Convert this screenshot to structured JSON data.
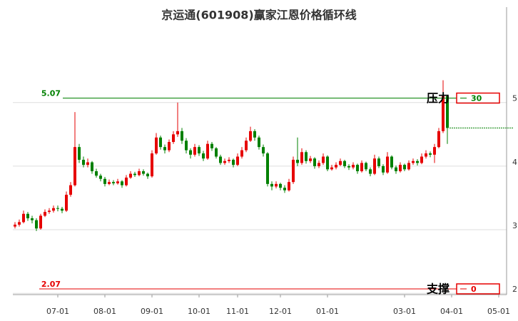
{
  "chart_data": {
    "type": "candlestick",
    "title": "京运通(601908)赢家江恩价格循环线",
    "categories": [
      null,
      null,
      null,
      null,
      null,
      null,
      null,
      null,
      null,
      null,
      "07-01",
      null,
      null,
      null,
      null,
      null,
      null,
      null,
      null,
      null,
      null,
      "08-01",
      null,
      null,
      null,
      null,
      null,
      null,
      null,
      null,
      null,
      null,
      "09-01",
      null,
      null,
      null,
      null,
      null,
      null,
      null,
      null,
      null,
      null,
      "10-01",
      null,
      null,
      null,
      null,
      null,
      null,
      null,
      null,
      "11-01",
      null,
      null,
      null,
      null,
      null,
      null,
      null,
      null,
      null,
      "12-01",
      null,
      null,
      null,
      null,
      null,
      null,
      null,
      null,
      null,
      null,
      "01-01",
      null,
      null,
      null,
      null,
      null,
      null,
      null,
      null,
      null,
      null,
      null,
      null,
      null,
      null,
      null,
      null,
      null,
      "03-01",
      null,
      null,
      null,
      null,
      null,
      null,
      null,
      null,
      null,
      null,
      "04-01",
      null,
      null,
      null,
      null,
      null,
      null,
      null,
      null,
      null,
      null,
      "05-01",
      null,
      null,
      null
    ],
    "values": [
      [
        3.05,
        3.12,
        3.02,
        3.08
      ],
      [
        3.08,
        3.16,
        3.05,
        3.12
      ],
      [
        3.12,
        3.3,
        3.1,
        3.25
      ],
      [
        3.25,
        3.28,
        3.14,
        3.18
      ],
      [
        3.18,
        3.22,
        3.1,
        3.15
      ],
      [
        3.15,
        3.18,
        2.98,
        3.02
      ],
      [
        3.02,
        3.25,
        3.0,
        3.22
      ],
      [
        3.22,
        3.32,
        3.2,
        3.28
      ],
      [
        3.28,
        3.34,
        3.25,
        3.3
      ],
      [
        3.3,
        3.38,
        3.27,
        3.34
      ],
      [
        3.34,
        3.38,
        3.29,
        3.33
      ],
      [
        3.33,
        3.36,
        3.26,
        3.3
      ],
      [
        3.3,
        3.6,
        3.28,
        3.55
      ],
      [
        3.55,
        3.75,
        3.52,
        3.7
      ],
      [
        3.7,
        4.85,
        3.68,
        4.3
      ],
      [
        4.3,
        4.35,
        4.05,
        4.1
      ],
      [
        4.1,
        4.15,
        3.98,
        4.02
      ],
      [
        4.02,
        4.12,
        3.98,
        4.06
      ],
      [
        4.06,
        4.08,
        3.88,
        3.92
      ],
      [
        3.92,
        3.96,
        3.82,
        3.85
      ],
      [
        3.85,
        3.88,
        3.76,
        3.8
      ],
      [
        3.8,
        3.83,
        3.68,
        3.72
      ],
      [
        3.72,
        3.79,
        3.7,
        3.75
      ],
      [
        3.75,
        3.78,
        3.7,
        3.73
      ],
      [
        3.73,
        3.8,
        3.71,
        3.76
      ],
      [
        3.76,
        3.78,
        3.66,
        3.7
      ],
      [
        3.7,
        3.86,
        3.68,
        3.82
      ],
      [
        3.82,
        3.92,
        3.8,
        3.88
      ],
      [
        3.88,
        3.91,
        3.83,
        3.86
      ],
      [
        3.86,
        3.96,
        3.84,
        3.92
      ],
      [
        3.92,
        3.95,
        3.85,
        3.88
      ],
      [
        3.88,
        3.9,
        3.8,
        3.84
      ],
      [
        3.84,
        4.25,
        3.82,
        4.2
      ],
      [
        4.2,
        4.52,
        4.18,
        4.45
      ],
      [
        4.45,
        4.48,
        4.26,
        4.3
      ],
      [
        4.3,
        4.34,
        4.2,
        4.25
      ],
      [
        4.25,
        4.42,
        4.22,
        4.38
      ],
      [
        4.38,
        4.55,
        4.35,
        4.5
      ],
      [
        4.5,
        5.0,
        4.46,
        4.55
      ],
      [
        4.55,
        4.6,
        4.35,
        4.4
      ],
      [
        4.4,
        4.44,
        4.2,
        4.25
      ],
      [
        4.25,
        4.28,
        4.12,
        4.18
      ],
      [
        4.18,
        4.35,
        4.15,
        4.3
      ],
      [
        4.3,
        4.33,
        4.16,
        4.2
      ],
      [
        4.2,
        4.24,
        4.08,
        4.12
      ],
      [
        4.12,
        4.4,
        4.1,
        4.35
      ],
      [
        4.35,
        4.38,
        4.24,
        4.28
      ],
      [
        4.28,
        4.3,
        4.12,
        4.15
      ],
      [
        4.15,
        4.18,
        4.02,
        4.05
      ],
      [
        4.05,
        4.12,
        4.02,
        4.08
      ],
      [
        4.08,
        4.14,
        4.05,
        4.1
      ],
      [
        4.1,
        4.12,
        3.98,
        4.02
      ],
      [
        4.02,
        4.2,
        4.0,
        4.15
      ],
      [
        4.15,
        4.3,
        4.12,
        4.25
      ],
      [
        4.25,
        4.45,
        4.22,
        4.4
      ],
      [
        4.4,
        4.62,
        4.38,
        4.55
      ],
      [
        4.55,
        4.58,
        4.4,
        4.45
      ],
      [
        4.45,
        4.48,
        4.26,
        4.3
      ],
      [
        4.3,
        4.34,
        4.15,
        4.2
      ],
      [
        4.2,
        4.22,
        3.68,
        3.72
      ],
      [
        3.72,
        3.76,
        3.62,
        3.68
      ],
      [
        3.68,
        3.76,
        3.65,
        3.72
      ],
      [
        3.72,
        3.74,
        3.62,
        3.66
      ],
      [
        3.66,
        3.7,
        3.58,
        3.62
      ],
      [
        3.62,
        3.8,
        3.6,
        3.75
      ],
      [
        3.75,
        4.15,
        3.72,
        4.1
      ],
      [
        4.1,
        4.45,
        4.0,
        4.05
      ],
      [
        4.05,
        4.28,
        4.02,
        4.22
      ],
      [
        4.22,
        4.25,
        4.04,
        4.08
      ],
      [
        4.08,
        4.16,
        4.05,
        4.12
      ],
      [
        4.12,
        4.14,
        3.96,
        4.0
      ],
      [
        4.0,
        4.09,
        3.97,
        4.05
      ],
      [
        4.05,
        4.2,
        4.02,
        4.15
      ],
      [
        4.15,
        4.17,
        3.92,
        3.95
      ],
      [
        3.95,
        4.02,
        3.93,
        3.98
      ],
      [
        3.98,
        4.06,
        3.95,
        4.02
      ],
      [
        4.02,
        4.12,
        4.0,
        4.08
      ],
      [
        4.08,
        4.1,
        3.97,
        4.0
      ],
      [
        4.0,
        4.03,
        3.94,
        3.98
      ],
      [
        3.98,
        4.06,
        3.95,
        4.02
      ],
      [
        4.02,
        4.04,
        3.88,
        3.92
      ],
      [
        3.92,
        4.09,
        3.9,
        4.05
      ],
      [
        4.05,
        4.07,
        3.92,
        3.95
      ],
      [
        3.95,
        3.98,
        3.84,
        3.88
      ],
      [
        3.88,
        4.18,
        3.86,
        4.12
      ],
      [
        4.12,
        4.15,
        3.97,
        4.0
      ],
      [
        4.0,
        4.03,
        3.86,
        3.9
      ],
      [
        3.9,
        4.22,
        3.88,
        4.15
      ],
      [
        4.15,
        4.17,
        3.95,
        3.98
      ],
      [
        3.98,
        4.01,
        3.88,
        3.92
      ],
      [
        3.92,
        4.06,
        3.9,
        4.02
      ],
      [
        4.02,
        4.04,
        3.92,
        3.95
      ],
      [
        3.95,
        4.09,
        3.93,
        4.05
      ],
      [
        4.05,
        4.12,
        4.02,
        4.08
      ],
      [
        4.08,
        4.11,
        4.01,
        4.05
      ],
      [
        4.05,
        4.2,
        4.03,
        4.15
      ],
      [
        4.15,
        4.25,
        4.12,
        4.2
      ],
      [
        4.2,
        4.23,
        4.14,
        4.18
      ],
      [
        4.18,
        4.35,
        4.05,
        4.3
      ],
      [
        4.3,
        4.6,
        4.28,
        4.55
      ],
      [
        4.55,
        5.35,
        4.52,
        5.1
      ],
      [
        5.1,
        5.12,
        4.35,
        4.6
      ],
      null,
      null,
      null,
      null,
      null,
      null,
      null,
      null,
      null,
      null,
      null,
      null,
      null,
      null,
      null
    ],
    "up_color": "#e60000",
    "down_color": "#008000",
    "ylim": [
      1.98,
      6.5
    ],
    "yticks": [
      2,
      3,
      4,
      5
    ],
    "grid": true,
    "resistance": {
      "value": 5.07,
      "tag": "压力",
      "count": 30,
      "color": "#008000"
    },
    "support": {
      "value": 2.07,
      "tag": "支撑",
      "count": 0,
      "color": "#e60000"
    }
  }
}
